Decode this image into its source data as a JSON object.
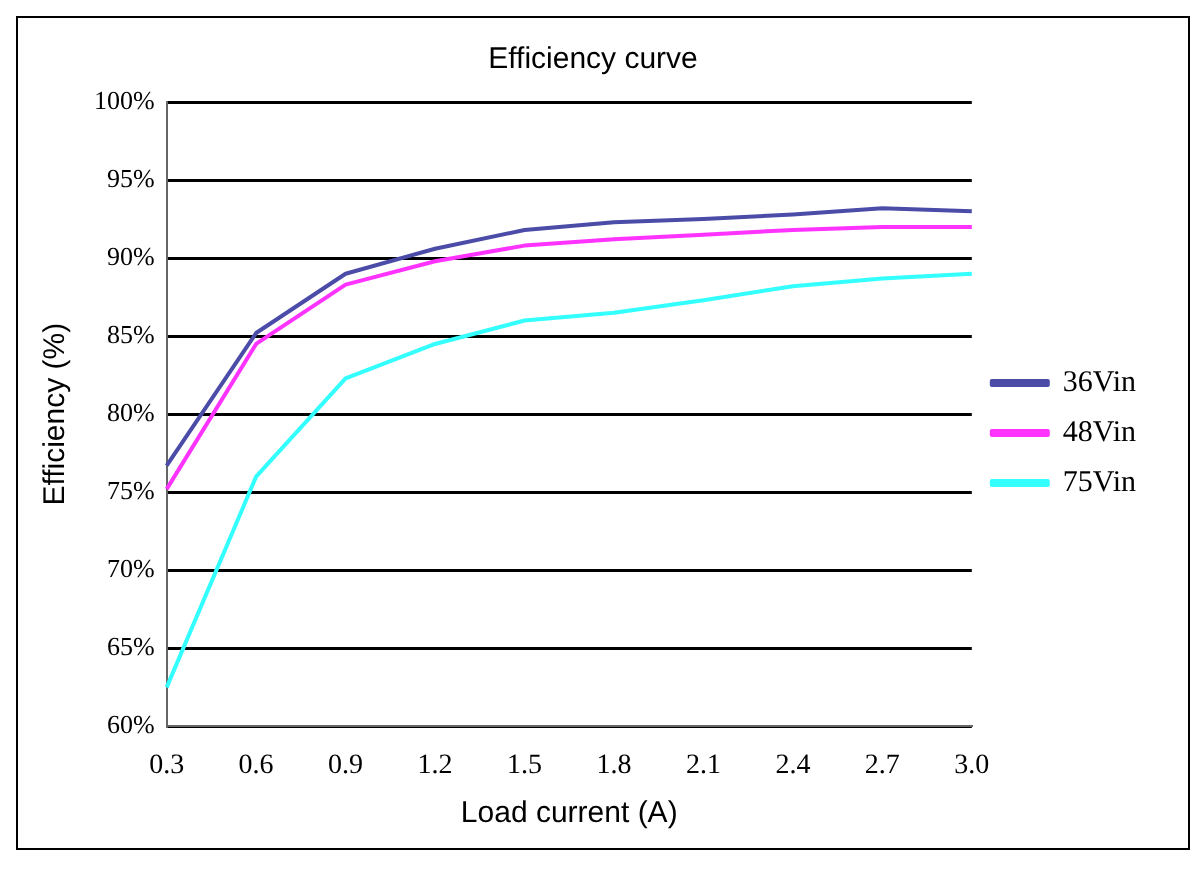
{
  "chart_data": {
    "type": "line",
    "title": "Efficiency curve",
    "xlabel": "Load current (A)",
    "ylabel": "Efficiency (%)",
    "categories": [
      "0.3",
      "0.6",
      "0.9",
      "1.2",
      "1.5",
      "1.8",
      "2.1",
      "2.4",
      "2.7",
      "3.0"
    ],
    "series": [
      {
        "name": "36Vin",
        "color": "#4b4ba8",
        "values": [
          76.7,
          85.2,
          89,
          90.6,
          91.8,
          92.3,
          92.5,
          92.8,
          93.2,
          93
        ]
      },
      {
        "name": "48Vin",
        "color": "#ff33ff",
        "values": [
          75.2,
          84.5,
          88.3,
          89.8,
          90.8,
          91.2,
          91.5,
          91.8,
          92,
          92
        ]
      },
      {
        "name": "75Vin",
        "color": "#33ffff",
        "values": [
          62.5,
          76,
          82.3,
          84.5,
          86,
          86.5,
          87.3,
          88.2,
          88.7,
          89
        ]
      }
    ],
    "ylim": [
      60,
      100
    ],
    "yticks": [
      {
        "value": 60,
        "label": "60%"
      },
      {
        "value": 65,
        "label": "65%"
      },
      {
        "value": 70,
        "label": "70%"
      },
      {
        "value": 75,
        "label": "75%"
      },
      {
        "value": 80,
        "label": "80%"
      },
      {
        "value": 85,
        "label": "85%"
      },
      {
        "value": 90,
        "label": "90%"
      },
      {
        "value": 95,
        "label": "95%"
      },
      {
        "value": 100,
        "label": "100%"
      }
    ],
    "grid": "y",
    "legend": "right",
    "marker": "none",
    "line_style": "solid"
  }
}
